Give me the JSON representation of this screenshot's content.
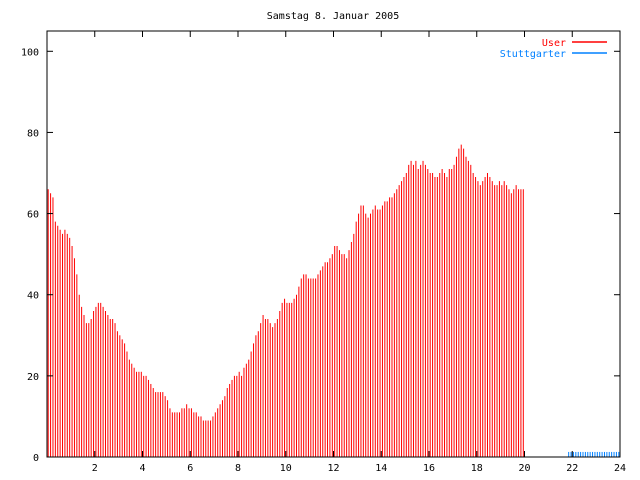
{
  "chart_data": {
    "type": "bar",
    "title": "Samstag 8. Januar 2005",
    "xlabel": "",
    "ylabel": "",
    "xlim": [
      0,
      24
    ],
    "ylim": [
      0,
      105
    ],
    "x_ticks": [
      2,
      4,
      6,
      8,
      10,
      12,
      14,
      16,
      18,
      20,
      22,
      24
    ],
    "y_ticks": [
      0,
      20,
      40,
      60,
      80,
      100
    ],
    "grid": false,
    "legend_position": "top-right",
    "colors": {
      "User": "#ff0000",
      "Stuttgarter": "#0080ff",
      "axis": "#000000"
    },
    "bin_hours": 0.1,
    "series": [
      {
        "name": "User",
        "values": [
          66,
          65,
          64,
          58,
          57,
          56,
          55,
          56,
          55,
          54,
          52,
          49,
          45,
          40,
          37,
          35,
          33,
          33,
          34,
          36,
          37,
          38,
          38,
          37,
          36,
          35,
          34,
          34,
          33,
          31,
          30,
          29,
          28,
          26,
          24,
          23,
          22,
          21,
          21,
          21,
          20,
          20,
          19,
          18,
          17,
          16,
          16,
          16,
          16,
          15,
          14,
          12,
          11,
          11,
          11,
          11,
          12,
          12,
          13,
          12,
          12,
          11,
          11,
          10,
          10,
          9,
          9,
          9,
          9,
          10,
          11,
          12,
          13,
          14,
          15,
          17,
          18,
          19,
          20,
          20,
          21,
          20,
          22,
          23,
          24,
          26,
          28,
          30,
          31,
          33,
          35,
          34,
          34,
          33,
          32,
          33,
          34,
          36,
          38,
          39,
          38,
          38,
          38,
          39,
          40,
          42,
          44,
          45,
          45,
          44,
          44,
          44,
          44,
          45,
          46,
          47,
          48,
          48,
          49,
          50,
          52,
          52,
          51,
          50,
          50,
          49,
          51,
          53,
          55,
          58,
          60,
          62,
          62,
          60,
          59,
          60,
          61,
          62,
          61,
          61,
          62,
          63,
          63,
          64,
          64,
          65,
          66,
          67,
          68,
          69,
          70,
          72,
          73,
          72,
          73,
          71,
          72,
          73,
          72,
          71,
          70,
          70,
          69,
          69,
          70,
          71,
          70,
          69,
          71,
          71,
          72,
          74,
          76,
          77,
          76,
          74,
          73,
          72,
          70,
          69,
          68,
          67,
          68,
          69,
          70,
          69,
          68,
          67,
          67,
          68,
          67,
          68,
          67,
          66,
          65,
          66,
          67,
          66,
          66,
          66
        ]
      },
      {
        "name": "Stuttgarter",
        "start_hour": 21.8,
        "end_hour": 24,
        "values": [
          1,
          1,
          1,
          1,
          1,
          1,
          1,
          1,
          1,
          1,
          1,
          1,
          1,
          1,
          1,
          1,
          1,
          1,
          1,
          1,
          1,
          1
        ]
      }
    ]
  }
}
